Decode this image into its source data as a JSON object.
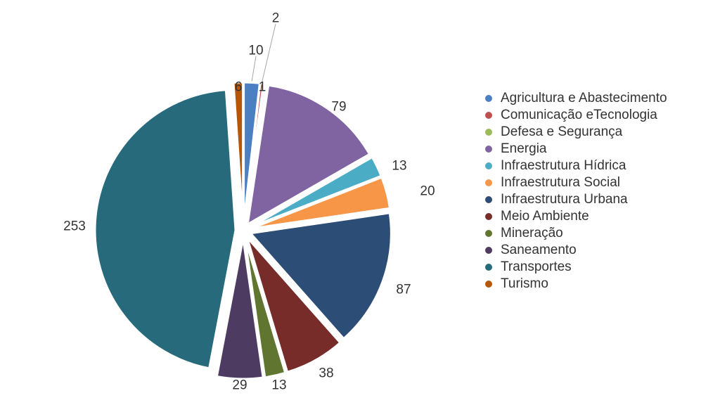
{
  "chart_data": {
    "type": "pie",
    "title": "",
    "legend_position": "right",
    "labels": [
      "Agricultura e Abastecimento",
      "Comunicação eTecnologia",
      "Defesa e Segurança",
      "Energia",
      "Infraestrutura Hídrica",
      "Infraestrutura Social",
      "Infraestrutura Urbana",
      "Meio Ambiente",
      "Mineração",
      "Saneamento",
      "Transportes",
      "Turismo"
    ],
    "values": [
      10,
      2,
      1,
      79,
      13,
      20,
      87,
      38,
      13,
      29,
      253,
      6
    ],
    "value_labels": [
      "10",
      "2",
      "1",
      "79",
      "13",
      "20",
      "87",
      "38",
      "13",
      "29",
      "253",
      "6"
    ],
    "colors": [
      "#4a7fc1",
      "#c0504d",
      "#9bbb59",
      "#8064a2",
      "#4bacc6",
      "#f79646",
      "#2c4d75",
      "#772c2a",
      "#5f7530",
      "#4d3b62",
      "#276a7c",
      "#b65708"
    ]
  }
}
